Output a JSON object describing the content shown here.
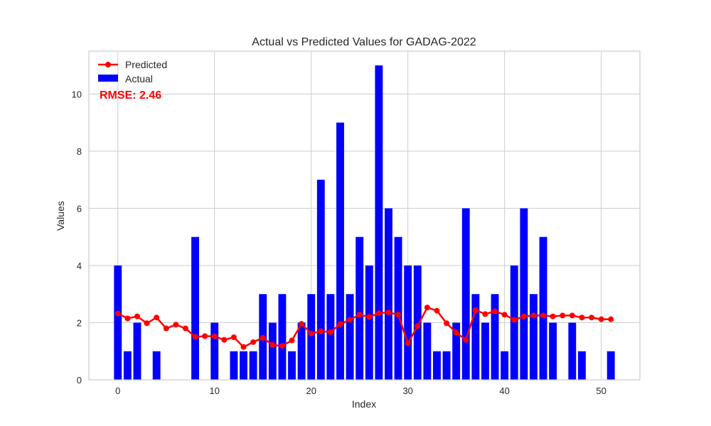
{
  "chart_data": {
    "type": "bar",
    "title": "Actual vs Predicted Values for GADAG-2022",
    "xlabel": "Index",
    "ylabel": "Values",
    "xlim": [
      -3,
      54
    ],
    "ylim": [
      0,
      11.5
    ],
    "xticks": [
      0,
      10,
      20,
      30,
      40,
      50
    ],
    "yticks": [
      0,
      2,
      4,
      6,
      8,
      10
    ],
    "grid": true,
    "legend_position": "top-left",
    "annotation": "RMSE: 2.46",
    "colors": {
      "actual": "#0000ff",
      "predicted": "#ff0000",
      "grid": "#cccccc",
      "frame": "#cccccc"
    },
    "series": [
      {
        "name": "Predicted",
        "type": "line",
        "x": [
          0,
          1,
          2,
          3,
          4,
          5,
          6,
          7,
          8,
          9,
          10,
          11,
          12,
          13,
          14,
          15,
          16,
          17,
          18,
          19,
          20,
          21,
          22,
          23,
          24,
          25,
          26,
          27,
          28,
          29,
          30,
          31,
          32,
          33,
          34,
          35,
          36,
          37,
          38,
          39,
          40,
          41,
          42,
          43,
          44,
          45,
          46,
          47,
          48,
          49,
          50,
          51
        ],
        "values": [
          2.32,
          2.15,
          2.22,
          1.98,
          2.18,
          1.8,
          1.93,
          1.8,
          1.5,
          1.53,
          1.52,
          1.4,
          1.49,
          1.15,
          1.32,
          1.47,
          1.22,
          1.19,
          1.38,
          1.96,
          1.62,
          1.7,
          1.67,
          1.95,
          2.1,
          2.28,
          2.2,
          2.33,
          2.36,
          2.28,
          1.28,
          1.88,
          2.53,
          2.42,
          1.98,
          1.65,
          1.4,
          2.44,
          2.3,
          2.4,
          2.28,
          2.1,
          2.22,
          2.25,
          2.25,
          2.22,
          2.25,
          2.25,
          2.18,
          2.18,
          2.12,
          2.12
        ]
      },
      {
        "name": "Actual",
        "type": "bar",
        "x": [
          0,
          1,
          2,
          3,
          4,
          5,
          6,
          7,
          8,
          9,
          10,
          11,
          12,
          13,
          14,
          15,
          16,
          17,
          18,
          19,
          20,
          21,
          22,
          23,
          24,
          25,
          26,
          27,
          28,
          29,
          30,
          31,
          32,
          33,
          34,
          35,
          36,
          37,
          38,
          39,
          40,
          41,
          42,
          43,
          44,
          45,
          46,
          47,
          48,
          49,
          50,
          51
        ],
        "values": [
          4,
          1,
          2,
          0,
          1,
          0,
          0,
          0,
          5,
          0,
          2,
          0,
          1,
          1,
          1,
          3,
          2,
          3,
          1,
          2,
          3,
          7,
          3,
          9,
          3,
          5,
          4,
          11,
          6,
          5,
          4,
          4,
          2,
          1,
          1,
          2,
          6,
          3,
          2,
          3,
          1,
          4,
          6,
          3,
          5,
          2,
          0,
          2,
          1,
          0,
          0,
          1
        ]
      }
    ]
  }
}
